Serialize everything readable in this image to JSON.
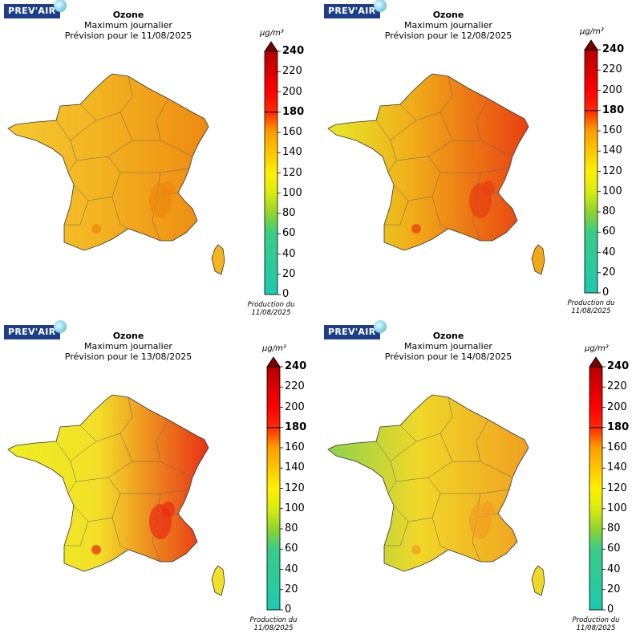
{
  "brand": "PREV'AIR",
  "colorbar": {
    "unit": "µg/m³",
    "ticks": [
      "240",
      "220",
      "200",
      "180",
      "160",
      "140",
      "120",
      "100",
      "80",
      "60",
      "40",
      "20",
      "0"
    ],
    "highlight_ticks": [
      "240",
      "180"
    ],
    "production_line1": "Production du",
    "production_line2": "11/08/2025",
    "stops": [
      {
        "value": 0,
        "color": "#1ec9b0"
      },
      {
        "value": 60,
        "color": "#39cc86"
      },
      {
        "value": 80,
        "color": "#8fd42c"
      },
      {
        "value": 100,
        "color": "#d9ec10"
      },
      {
        "value": 120,
        "color": "#fff000"
      },
      {
        "value": 140,
        "color": "#ffc600"
      },
      {
        "value": 160,
        "color": "#ff9e00"
      },
      {
        "value": 180,
        "color": "#ff2a00"
      },
      {
        "value": 200,
        "color": "#ff0000"
      },
      {
        "value": 240,
        "color": "#b50000"
      }
    ]
  },
  "panels": [
    {
      "title": "Ozone",
      "subtitle": "Maximum journalier",
      "forecast": "Prévision pour le 11/08/2025",
      "base_color": "#f2b420",
      "west_color": "#f6c830",
      "hot_color": "#ee8a10"
    },
    {
      "title": "Ozone",
      "subtitle": "Maximum journalier",
      "forecast": "Prévision pour le 12/08/2025",
      "base_color": "#f0a818",
      "west_color": "#e6ea28",
      "hot_color": "#e84010"
    },
    {
      "title": "Ozone",
      "subtitle": "Maximum journalier",
      "forecast": "Prévision pour le 13/08/2025",
      "base_color": "#f2e028",
      "west_color": "#eeee20",
      "hot_color": "#e83014"
    },
    {
      "title": "Ozone",
      "subtitle": "Maximum journalier",
      "forecast": "Prévision pour le 14/08/2025",
      "base_color": "#f0d828",
      "west_color": "#8cd44a",
      "hot_color": "#f0a020"
    }
  ]
}
